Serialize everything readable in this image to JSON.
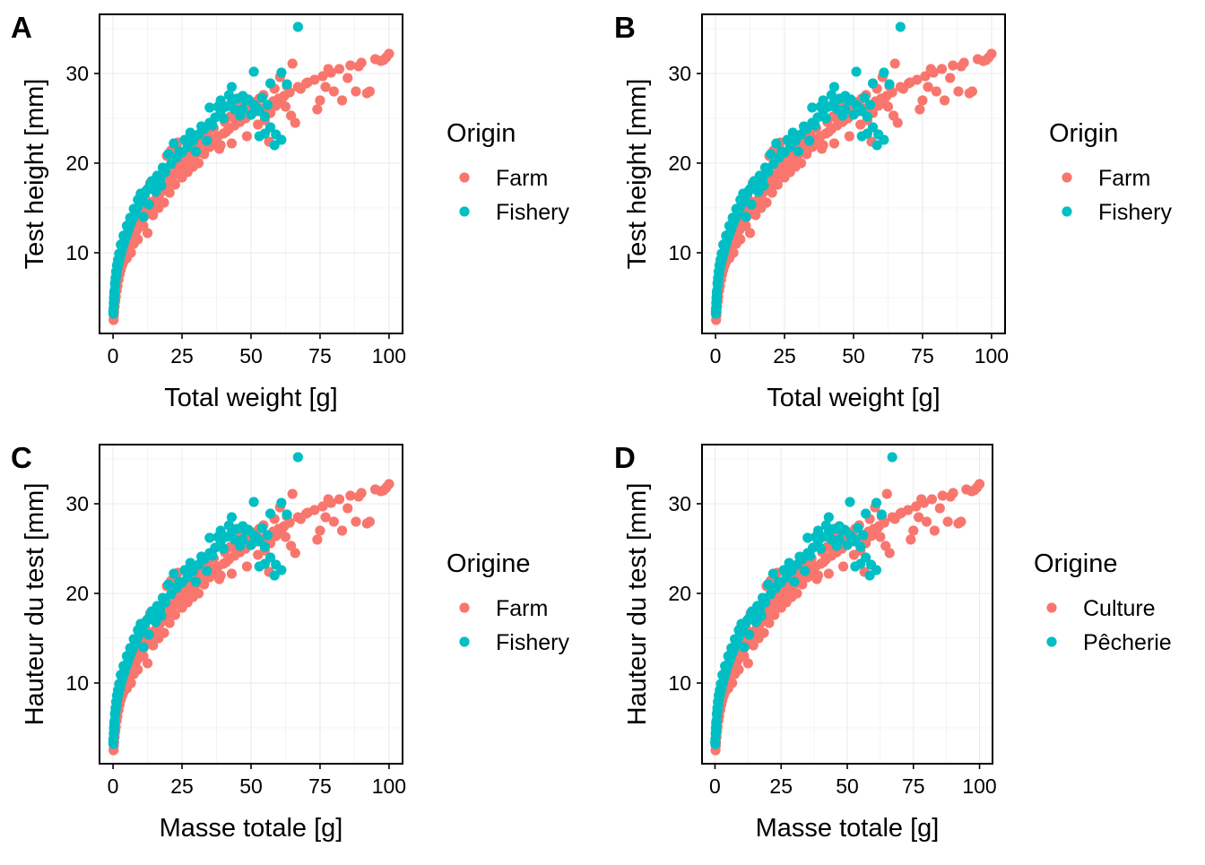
{
  "colors": {
    "farm": "#F8766D",
    "fishery": "#00BFC4",
    "grid": "#ebebeb",
    "panel_border": "#000000"
  },
  "chart_data": [
    {
      "tag": "A",
      "type": "scatter",
      "xlabel": "Total weight  [g]",
      "ylabel": "Test height  [mm]",
      "xlim": [
        -4.9,
        104.9
      ],
      "ylim": [
        1.0,
        36.6
      ],
      "xticks": [
        0,
        25,
        50,
        75,
        100
      ],
      "yticks": [
        10,
        20,
        30
      ],
      "grid": true,
      "legend": {
        "title": "Origin",
        "placement": "right",
        "entries": [
          "Farm",
          "Fishery"
        ]
      }
    },
    {
      "tag": "B",
      "type": "scatter",
      "xlabel": "Total weight  [g]",
      "ylabel": "Test height  [mm]",
      "xlim": [
        -4.9,
        104.9
      ],
      "ylim": [
        1.0,
        36.6
      ],
      "xticks": [
        0,
        25,
        50,
        75,
        100
      ],
      "yticks": [
        10,
        20,
        30
      ],
      "grid": true,
      "legend": {
        "title": "Origin",
        "placement": "right",
        "entries": [
          "Farm",
          "Fishery"
        ]
      }
    },
    {
      "tag": "C",
      "type": "scatter",
      "xlabel": "Masse totale  [g]",
      "ylabel": "Hauteur du test  [mm]",
      "xlim": [
        -4.9,
        104.9
      ],
      "ylim": [
        1.0,
        36.6
      ],
      "xticks": [
        0,
        25,
        50,
        75,
        100
      ],
      "yticks": [
        10,
        20,
        30
      ],
      "grid": true,
      "legend": {
        "title": "Origine",
        "placement": "right",
        "entries": [
          "Farm",
          "Fishery"
        ]
      }
    },
    {
      "tag": "D",
      "type": "scatter",
      "xlabel": "Masse totale  [g]",
      "ylabel": "Hauteur du test  [mm]",
      "xlim": [
        -4.9,
        104.9
      ],
      "ylim": [
        1.0,
        36.6
      ],
      "xticks": [
        0,
        25,
        50,
        75,
        100
      ],
      "yticks": [
        10,
        20,
        30
      ],
      "grid": true,
      "legend": {
        "title": "Origine",
        "placement": "right",
        "entries": [
          "Culture",
          "Pêcherie"
        ]
      }
    }
  ],
  "series_points": {
    "farm": [
      [
        0.2,
        2.5
      ],
      [
        0.3,
        3.0
      ],
      [
        0.4,
        3.4
      ],
      [
        0.6,
        4.0
      ],
      [
        0.8,
        4.6
      ],
      [
        1.0,
        5.1
      ],
      [
        1.3,
        5.8
      ],
      [
        1.6,
        6.3
      ],
      [
        2.0,
        7.0
      ],
      [
        2.4,
        7.6
      ],
      [
        2.8,
        8.1
      ],
      [
        3.3,
        8.6
      ],
      [
        3.8,
        9.0
      ],
      [
        4.3,
        9.5
      ],
      [
        4.8,
        9.9
      ],
      [
        5.4,
        10.4
      ],
      [
        6.0,
        10.8
      ],
      [
        6.6,
        11.2
      ],
      [
        7.2,
        11.6
      ],
      [
        8.0,
        12.1
      ],
      [
        8.8,
        12.6
      ],
      [
        9.6,
        13.0
      ],
      [
        10.4,
        13.5
      ],
      [
        11.2,
        14.0
      ],
      [
        12.0,
        14.3
      ],
      [
        13.0,
        14.8
      ],
      [
        14.0,
        15.3
      ],
      [
        15.0,
        15.8
      ],
      [
        16.0,
        16.2
      ],
      [
        17.0,
        16.6
      ],
      [
        18.0,
        17.1
      ],
      [
        19.0,
        17.4
      ],
      [
        20.0,
        17.8
      ],
      [
        21.5,
        18.4
      ],
      [
        23.0,
        18.9
      ],
      [
        24.5,
        19.4
      ],
      [
        26.0,
        19.8
      ],
      [
        28.0,
        20.4
      ],
      [
        30.0,
        21.0
      ],
      [
        32.0,
        21.5
      ],
      [
        34.0,
        22.0
      ],
      [
        36.0,
        22.5
      ],
      [
        38.0,
        23.0
      ],
      [
        40.0,
        23.3
      ],
      [
        42.0,
        23.8
      ],
      [
        44.0,
        24.2
      ],
      [
        46.0,
        24.6
      ],
      [
        48.0,
        25.0
      ],
      [
        50.0,
        25.4
      ],
      [
        52.0,
        25.8
      ],
      [
        54.0,
        26.1
      ],
      [
        56.0,
        26.5
      ],
      [
        58.0,
        26.9
      ],
      [
        60.0,
        27.2
      ],
      [
        62.0,
        27.5
      ],
      [
        64.0,
        27.9
      ],
      [
        67.0,
        28.5
      ],
      [
        70.0,
        28.9
      ],
      [
        73.0,
        29.3
      ],
      [
        76.0,
        29.7
      ],
      [
        79.0,
        30.1
      ],
      [
        82.0,
        30.5
      ],
      [
        86.0,
        30.9
      ],
      [
        90.0,
        31.2
      ],
      [
        95.0,
        31.6
      ],
      [
        99.0,
        31.8
      ],
      [
        100.0,
        32.2
      ],
      [
        1.5,
        6.8
      ],
      [
        2.2,
        8.0
      ],
      [
        3.0,
        9.3
      ],
      [
        4.0,
        10.2
      ],
      [
        5.0,
        9.4
      ],
      [
        6.5,
        10.0
      ],
      [
        7.5,
        11.0
      ],
      [
        9.0,
        11.5
      ],
      [
        11.0,
        13.0
      ],
      [
        12.5,
        12.2
      ],
      [
        14.5,
        14.2
      ],
      [
        16.5,
        15.0
      ],
      [
        18.5,
        15.6
      ],
      [
        20.5,
        16.7
      ],
      [
        22.5,
        17.6
      ],
      [
        25.0,
        18.4
      ],
      [
        27.0,
        19.0
      ],
      [
        29.0,
        19.6
      ],
      [
        31.0,
        20.0
      ],
      [
        33.0,
        21.0
      ],
      [
        35.0,
        21.8
      ],
      [
        37.0,
        22.3
      ],
      [
        39.0,
        22.0
      ],
      [
        41.0,
        23.5
      ],
      [
        43.0,
        22.2
      ],
      [
        45.0,
        24.8
      ],
      [
        47.0,
        25.3
      ],
      [
        49.0,
        26.0
      ],
      [
        51.0,
        26.8
      ],
      [
        53.0,
        27.2
      ],
      [
        55.0,
        24.8
      ],
      [
        57.0,
        25.6
      ],
      [
        59.0,
        26.4
      ],
      [
        61.0,
        27.0
      ],
      [
        63.0,
        28.6
      ],
      [
        65.0,
        31.1
      ],
      [
        66.0,
        24.5
      ],
      [
        68.0,
        28.3
      ],
      [
        74.0,
        26.0
      ],
      [
        75.0,
        27.0
      ],
      [
        77.0,
        28.5
      ],
      [
        80.0,
        28.0
      ],
      [
        83.0,
        27.0
      ],
      [
        85.0,
        29.5
      ],
      [
        88.0,
        28.0
      ],
      [
        92.0,
        27.8
      ],
      [
        97.0,
        31.4
      ],
      [
        60.5,
        29.6
      ],
      [
        62.5,
        26.3
      ],
      [
        64.5,
        25.3
      ],
      [
        58.5,
        28.3
      ],
      [
        46.5,
        26.7
      ],
      [
        44.5,
        25.6
      ],
      [
        40.5,
        24.6
      ],
      [
        38.5,
        21.6
      ],
      [
        36.5,
        23.9
      ],
      [
        34.5,
        23.1
      ],
      [
        32.5,
        22.6
      ],
      [
        30.5,
        22.1
      ],
      [
        28.5,
        21.3
      ],
      [
        26.5,
        20.9
      ],
      [
        24.0,
        20.5
      ],
      [
        22.0,
        19.8
      ],
      [
        20.2,
        18.8
      ],
      [
        18.2,
        18.6
      ],
      [
        16.2,
        17.9
      ],
      [
        14.2,
        17.1
      ],
      [
        12.2,
        15.8
      ],
      [
        10.2,
        15.2
      ],
      [
        8.2,
        14.2
      ],
      [
        6.2,
        13.3
      ],
      [
        4.2,
        11.6
      ],
      [
        2.6,
        9.8
      ],
      [
        1.8,
        8.5
      ],
      [
        1.2,
        7.2
      ],
      [
        0.7,
        5.5
      ],
      [
        0.5,
        4.8
      ],
      [
        19.5,
        20.8
      ],
      [
        21.0,
        21.4
      ],
      [
        23.5,
        22.3
      ],
      [
        17.5,
        18.1
      ],
      [
        15.5,
        16.9
      ],
      [
        13.5,
        17.8
      ],
      [
        11.5,
        16.3
      ],
      [
        9.5,
        14.6
      ],
      [
        7.0,
        12.8
      ],
      [
        5.8,
        12.4
      ],
      [
        3.6,
        11.1
      ],
      [
        48.5,
        23.0
      ],
      [
        56.5,
        22.4
      ],
      [
        52.5,
        24.3
      ],
      [
        42.5,
        25.2
      ],
      [
        54.5,
        27.6
      ],
      [
        70.5,
        29.0
      ],
      [
        78.0,
        30.5
      ],
      [
        89.0,
        30.8
      ],
      [
        93.0,
        28.0
      ],
      [
        98.0,
        31.5
      ]
    ],
    "fishery": [
      [
        0.1,
        3.4
      ],
      [
        0.2,
        3.8
      ],
      [
        0.3,
        4.3
      ],
      [
        0.4,
        4.8
      ],
      [
        0.5,
        5.3
      ],
      [
        0.6,
        5.8
      ],
      [
        0.8,
        6.4
      ],
      [
        1.0,
        7.0
      ],
      [
        1.3,
        7.6
      ],
      [
        1.6,
        8.2
      ],
      [
        2.0,
        8.8
      ],
      [
        2.5,
        9.4
      ],
      [
        3.0,
        10.0
      ],
      [
        3.5,
        10.6
      ],
      [
        4.0,
        11.1
      ],
      [
        4.6,
        11.7
      ],
      [
        5.2,
        12.2
      ],
      [
        5.8,
        12.7
      ],
      [
        6.5,
        13.3
      ],
      [
        7.2,
        13.8
      ],
      [
        8.0,
        14.4
      ],
      [
        8.8,
        15.0
      ],
      [
        9.6,
        15.5
      ],
      [
        10.5,
        16.1
      ],
      [
        11.5,
        16.6
      ],
      [
        12.5,
        17.1
      ],
      [
        13.5,
        17.6
      ],
      [
        15.0,
        17.4
      ],
      [
        17.0,
        18.2
      ],
      [
        19.0,
        19.0
      ],
      [
        21.0,
        19.9
      ],
      [
        23.0,
        20.6
      ],
      [
        25.0,
        21.2
      ],
      [
        27.0,
        21.8
      ],
      [
        29.0,
        22.5
      ],
      [
        31.0,
        23.2
      ],
      [
        33.0,
        23.8
      ],
      [
        35.0,
        24.5
      ],
      [
        37.0,
        25.1
      ],
      [
        39.0,
        25.8
      ],
      [
        41.0,
        26.3
      ],
      [
        43.0,
        26.8
      ],
      [
        45.0,
        27.2
      ],
      [
        47.0,
        27.5
      ],
      [
        49.0,
        27.1
      ],
      [
        51.0,
        26.5
      ],
      [
        53.0,
        25.8
      ],
      [
        55.0,
        25.2
      ],
      [
        57.0,
        24.0
      ],
      [
        59.0,
        23.2
      ],
      [
        61.0,
        22.6
      ],
      [
        63.0,
        28.8
      ],
      [
        67.0,
        35.2
      ],
      [
        51.0,
        30.2
      ],
      [
        61.0,
        30.1
      ],
      [
        57.0,
        28.9
      ],
      [
        43.0,
        28.5
      ],
      [
        35.0,
        26.2
      ],
      [
        39.0,
        27.0
      ],
      [
        47.0,
        26.0
      ],
      [
        53.0,
        23.0
      ],
      [
        58.5,
        22.0
      ],
      [
        55.0,
        23.3
      ],
      [
        22.0,
        22.2
      ],
      [
        24.0,
        21.3
      ],
      [
        20.0,
        21.0
      ],
      [
        18.0,
        19.5
      ],
      [
        16.0,
        18.6
      ],
      [
        14.0,
        18.0
      ],
      [
        12.0,
        16.9
      ],
      [
        10.0,
        16.6
      ],
      [
        9.0,
        15.9
      ],
      [
        7.5,
        14.9
      ],
      [
        6.2,
        13.9
      ],
      [
        5.0,
        13.0
      ],
      [
        3.8,
        11.9
      ],
      [
        2.8,
        10.9
      ],
      [
        2.2,
        9.9
      ],
      [
        1.8,
        9.2
      ],
      [
        1.4,
        8.6
      ],
      [
        1.1,
        7.9
      ],
      [
        0.9,
        7.2
      ],
      [
        0.7,
        6.6
      ],
      [
        0.45,
        5.6
      ],
      [
        0.35,
        5.0
      ],
      [
        0.25,
        4.4
      ],
      [
        0.15,
        3.7
      ],
      [
        0.12,
        3.2
      ],
      [
        26.0,
        22.6
      ],
      [
        28.0,
        23.4
      ],
      [
        30.0,
        21.3
      ],
      [
        32.0,
        24.1
      ],
      [
        34.0,
        22.5
      ],
      [
        36.0,
        24.2
      ],
      [
        38.0,
        26.3
      ],
      [
        40.0,
        25.0
      ],
      [
        42.0,
        27.6
      ],
      [
        44.0,
        26.0
      ],
      [
        46.0,
        25.3
      ],
      [
        48.0,
        27.0
      ],
      [
        50.0,
        25.4
      ],
      [
        52.0,
        26.2
      ],
      [
        54.0,
        27.3
      ],
      [
        56.0,
        26.5
      ],
      [
        11.0,
        14.0
      ],
      [
        13.0,
        15.4
      ],
      [
        15.5,
        16.8
      ],
      [
        17.5,
        17.5
      ]
    ]
  }
}
